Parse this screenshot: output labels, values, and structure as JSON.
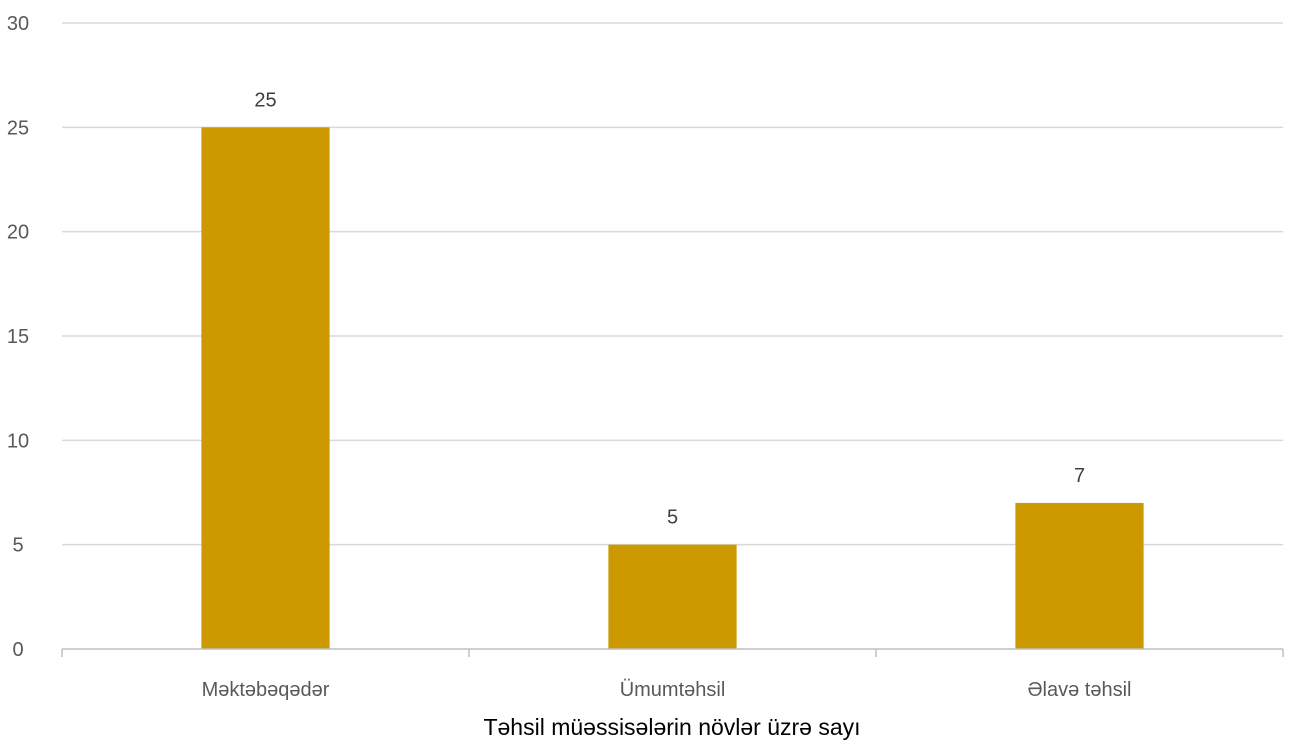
{
  "chart_data": {
    "type": "bar",
    "title": "",
    "xlabel": "Təhsil müəssisələrin növlər üzrə sayı",
    "ylabel": "",
    "categories": [
      "Məktəbəqədər",
      "Ümumtəhsil",
      "Əlavə təhsil"
    ],
    "values": [
      25,
      5,
      7
    ],
    "ylim": [
      0,
      30
    ],
    "yticks": [
      0,
      5,
      10,
      15,
      20,
      25,
      30
    ],
    "data_labels": true,
    "grid": "horizontal",
    "legend": "none",
    "colors": {
      "bar": "#CC9900",
      "grid": "#D9D9D9",
      "axis": "#BFBFBF"
    }
  }
}
